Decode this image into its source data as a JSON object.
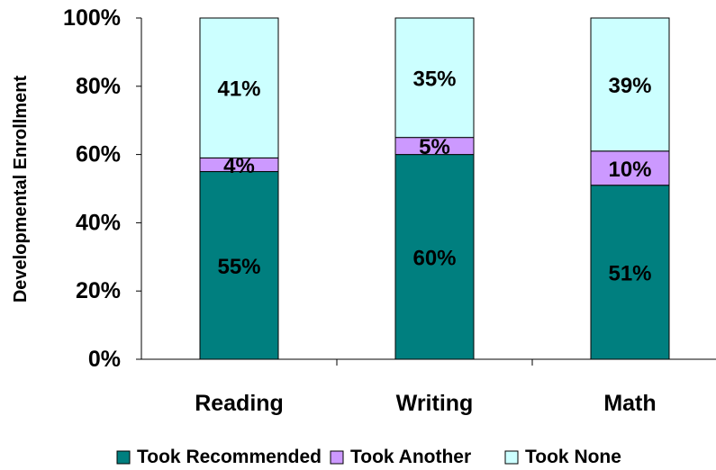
{
  "chart_data": {
    "type": "bar",
    "stacked": true,
    "categories": [
      "Reading",
      "Writing",
      "Math"
    ],
    "series": [
      {
        "name": "Took Recommended",
        "values": [
          55,
          60,
          51
        ],
        "labels": [
          "55%",
          "60%",
          "51%"
        ],
        "color": "#007f7f"
      },
      {
        "name": "Took Another",
        "values": [
          4,
          5,
          10
        ],
        "labels": [
          "4%",
          "5%",
          "10%"
        ],
        "color": "#cc99ff"
      },
      {
        "name": "Took None",
        "values": [
          41,
          35,
          39
        ],
        "labels": [
          "41%",
          "35%",
          "39%"
        ],
        "color": "#ccffff"
      }
    ],
    "ylabel": "Developmental Enrollment",
    "xlabel": "",
    "ylim": [
      0,
      100
    ],
    "yticks": [
      0,
      20,
      40,
      60,
      80,
      100
    ],
    "ytick_labels": [
      "0%",
      "20%",
      "40%",
      "60%",
      "80%",
      "100%"
    ],
    "grid": false,
    "legend_position": "bottom"
  }
}
